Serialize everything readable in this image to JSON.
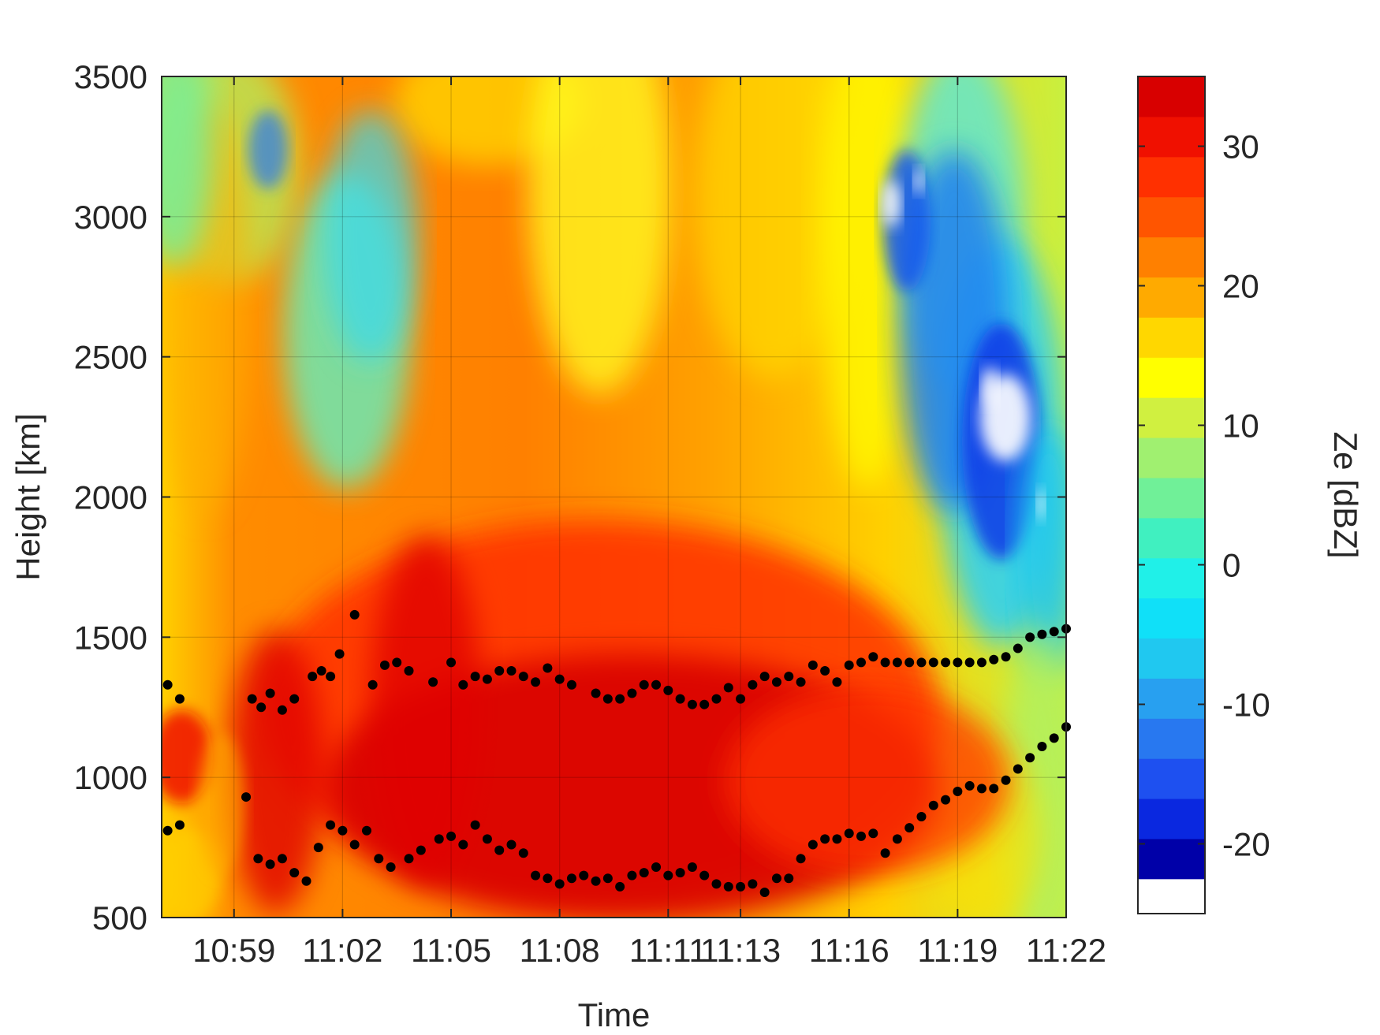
{
  "chart_data": {
    "type": "heatmap",
    "title": "",
    "xlabel": "Time",
    "ylabel": "Height [km]",
    "colorbar_label": "Ze [dBZ]",
    "x_tick_labels": [
      "10:59",
      "11:02",
      "11:05",
      "11:08",
      "11:11",
      "11:13",
      "11:16",
      "11:19",
      "11:22"
    ],
    "x_range": [
      "10:57",
      "11:22"
    ],
    "ylim": [
      500,
      3500
    ],
    "y_ticks": [
      500,
      1000,
      1500,
      2000,
      2500,
      3000,
      3500
    ],
    "clim": [
      -25,
      35
    ],
    "colorbar_ticks": [
      -20,
      -10,
      0,
      10,
      20,
      30
    ],
    "grid": true,
    "colormap": "jet, 25 discrete levels; values below -22.5 dBZ shown white",
    "colormap_colors": [
      "#0000a8",
      "#0a28e0",
      "#1e50f0",
      "#2878f0",
      "#28a0f0",
      "#20c8f0",
      "#10e0f8",
      "#20f0e8",
      "#40f0c0",
      "#70f098",
      "#a0f070",
      "#d0f040",
      "#ffff00",
      "#ffd700",
      "#ffaa00",
      "#ff8000",
      "#ff5500",
      "#ff3000",
      "#f01000",
      "#d80000"
    ],
    "background_field_description": "",
    "series": [
      {
        "marker": "black-dot",
        "x": [
          "10:57:10",
          "10:57:30",
          "10:59:30",
          "10:59:45",
          "11:00:00",
          "11:00:20",
          "11:00:40",
          "11:01:10",
          "11:01:25",
          "11:01:40",
          "11:01:55",
          "11:02:20",
          "11:02:50",
          "11:03:10",
          "11:03:30",
          "11:03:50",
          "11:04:30",
          "11:05:00",
          "11:05:20",
          "11:05:40",
          "11:06:00",
          "11:06:20",
          "11:06:40",
          "11:07:00",
          "11:07:20",
          "11:07:40",
          "11:08:00",
          "11:08:20",
          "11:09:00",
          "11:09:20",
          "11:09:40",
          "11:10:00",
          "11:10:20",
          "11:10:40",
          "11:11:00",
          "11:11:20",
          "11:11:40",
          "11:12:00",
          "11:12:20",
          "11:12:40",
          "11:13:00",
          "11:13:20",
          "11:13:40",
          "11:14:00",
          "11:14:20",
          "11:14:40",
          "11:15:00",
          "11:15:20",
          "11:15:40",
          "11:16:00",
          "11:16:20",
          "11:16:40",
          "11:17:00",
          "11:17:20",
          "11:17:40",
          "11:18:00",
          "11:18:20",
          "11:18:40",
          "11:19:00",
          "11:19:20",
          "11:19:40",
          "11:20:00",
          "11:20:20",
          "11:20:40",
          "11:21:00",
          "11:21:20",
          "11:21:40",
          "11:22:00"
        ],
        "y": [
          1330,
          1280,
          1280,
          1250,
          1300,
          1240,
          1280,
          1360,
          1380,
          1360,
          1440,
          1580,
          1330,
          1400,
          1410,
          1380,
          1340,
          1410,
          1330,
          1360,
          1350,
          1380,
          1380,
          1360,
          1340,
          1390,
          1350,
          1330,
          1300,
          1280,
          1280,
          1300,
          1330,
          1330,
          1310,
          1280,
          1260,
          1260,
          1280,
          1320,
          1280,
          1330,
          1360,
          1340,
          1360,
          1340,
          1400,
          1380,
          1340,
          1400,
          1410,
          1430,
          1410,
          1410,
          1410,
          1410,
          1410,
          1410,
          1410,
          1410,
          1410,
          1420,
          1430,
          1460,
          1500,
          1510,
          1520,
          1530
        ]
      },
      {
        "marker": "black-dot",
        "x": [
          "10:57:10",
          "10:57:30",
          "10:59:20",
          "10:59:40",
          "11:00:00",
          "11:00:20",
          "11:00:40",
          "11:01:00",
          "11:01:20",
          "11:01:40",
          "11:02:00",
          "11:02:20",
          "11:02:40",
          "11:03:00",
          "11:03:20",
          "11:03:50",
          "11:04:10",
          "11:04:40",
          "11:05:00",
          "11:05:20",
          "11:05:40",
          "11:06:00",
          "11:06:20",
          "11:06:40",
          "11:07:00",
          "11:07:20",
          "11:07:40",
          "11:08:00",
          "11:08:20",
          "11:08:40",
          "11:09:00",
          "11:09:20",
          "11:09:40",
          "11:10:00",
          "11:10:20",
          "11:10:40",
          "11:11:00",
          "11:11:20",
          "11:11:40",
          "11:12:00",
          "11:12:20",
          "11:12:40",
          "11:13:00",
          "11:13:20",
          "11:13:40",
          "11:14:00",
          "11:14:20",
          "11:14:40",
          "11:15:00",
          "11:15:20",
          "11:15:40",
          "11:16:00",
          "11:16:20",
          "11:16:40",
          "11:17:00",
          "11:17:20",
          "11:17:40",
          "11:18:00",
          "11:18:20",
          "11:18:40",
          "11:19:00",
          "11:19:20",
          "11:19:40",
          "11:20:00",
          "11:20:20",
          "11:20:40",
          "11:21:00",
          "11:21:20",
          "11:21:40",
          "11:22:00"
        ],
        "y": [
          810,
          830,
          930,
          710,
          690,
          710,
          660,
          630,
          750,
          830,
          810,
          760,
          810,
          710,
          680,
          710,
          740,
          780,
          790,
          760,
          830,
          780,
          740,
          760,
          730,
          650,
          640,
          620,
          640,
          650,
          630,
          640,
          610,
          650,
          660,
          680,
          650,
          660,
          680,
          650,
          620,
          610,
          610,
          620,
          590,
          640,
          640,
          710,
          760,
          780,
          780,
          800,
          790,
          800,
          730,
          780,
          820,
          860,
          900,
          920,
          950,
          970,
          960,
          960,
          990,
          1030,
          1070,
          1110,
          1140,
          1180
        ]
      }
    ]
  }
}
